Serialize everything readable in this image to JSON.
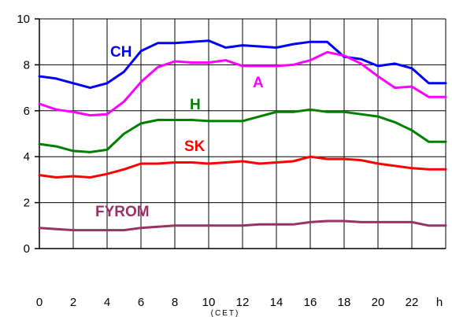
{
  "chart_data": {
    "type": "line",
    "x": [
      0,
      1,
      2,
      3,
      4,
      5,
      6,
      7,
      8,
      9,
      10,
      11,
      12,
      13,
      14,
      15,
      16,
      17,
      18,
      19,
      20,
      21,
      22,
      23,
      24
    ],
    "x_tick_labels": [
      "0",
      "2",
      "4",
      "6",
      "8",
      "10",
      "12",
      "14",
      "16",
      "18",
      "20",
      "22"
    ],
    "x_unit_label": "h",
    "x_sub_label": "(CET)",
    "ylim": [
      0,
      10
    ],
    "y_ticks": [
      0,
      2,
      4,
      6,
      8,
      10
    ],
    "grid": true,
    "series": [
      {
        "name": "CH",
        "color": "#0000ff",
        "values": [
          7.5,
          7.4,
          7.2,
          7.0,
          7.2,
          7.7,
          8.6,
          8.95,
          8.95,
          9.0,
          9.05,
          8.75,
          8.85,
          8.8,
          8.75,
          8.9,
          9.0,
          9.0,
          8.35,
          8.25,
          7.95,
          8.05,
          7.85,
          7.2,
          7.2
        ]
      },
      {
        "name": "A",
        "color": "#ff00ff",
        "values": [
          6.3,
          6.05,
          5.95,
          5.8,
          5.85,
          6.4,
          7.25,
          7.9,
          8.15,
          8.1,
          8.1,
          8.2,
          7.95,
          7.95,
          7.95,
          8.0,
          8.2,
          8.55,
          8.4,
          8.05,
          7.5,
          7.0,
          7.05,
          6.6,
          6.6
        ]
      },
      {
        "name": "H",
        "color": "#008000",
        "values": [
          4.55,
          4.45,
          4.25,
          4.2,
          4.3,
          5.0,
          5.45,
          5.6,
          5.6,
          5.6,
          5.55,
          5.55,
          5.55,
          5.75,
          5.95,
          5.95,
          6.05,
          5.95,
          5.95,
          5.85,
          5.75,
          5.5,
          5.15,
          4.65,
          4.65
        ]
      },
      {
        "name": "SK",
        "color": "#ff0000",
        "values": [
          3.2,
          3.1,
          3.15,
          3.1,
          3.25,
          3.45,
          3.7,
          3.7,
          3.75,
          3.75,
          3.7,
          3.75,
          3.8,
          3.7,
          3.75,
          3.8,
          4.0,
          3.9,
          3.9,
          3.85,
          3.7,
          3.6,
          3.5,
          3.45,
          3.45
        ]
      },
      {
        "name": "FYROM",
        "color": "#993366",
        "values": [
          0.9,
          0.85,
          0.8,
          0.8,
          0.8,
          0.8,
          0.9,
          0.95,
          1.0,
          1.0,
          1.0,
          1.0,
          1.0,
          1.05,
          1.05,
          1.05,
          1.15,
          1.2,
          1.2,
          1.15,
          1.15,
          1.15,
          1.15,
          1.0,
          1.0
        ]
      }
    ]
  }
}
